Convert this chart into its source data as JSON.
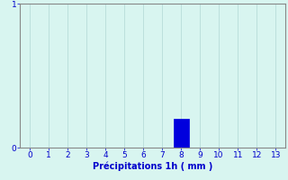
{
  "categories": [
    0,
    1,
    2,
    3,
    4,
    5,
    6,
    7,
    8,
    9,
    10,
    11,
    12,
    13
  ],
  "values": [
    0,
    0,
    0,
    0,
    0,
    0,
    0,
    0,
    0.2,
    0,
    0,
    0,
    0,
    0
  ],
  "bar_color": "#0000dd",
  "bar_edge_color": "#0000dd",
  "background_color": "#d8f5f0",
  "grid_color": "#b0d8d4",
  "spine_color": "#888888",
  "text_color": "#0000cc",
  "xlabel": "Précipitations 1h ( mm )",
  "xlabel_fontsize": 7,
  "tick_fontsize": 6.5,
  "ylim": [
    0,
    1
  ],
  "xlim": [
    -0.5,
    13.5
  ],
  "yticks": [
    0,
    1
  ],
  "xticks": [
    0,
    1,
    2,
    3,
    4,
    5,
    6,
    7,
    8,
    9,
    10,
    11,
    12,
    13
  ]
}
